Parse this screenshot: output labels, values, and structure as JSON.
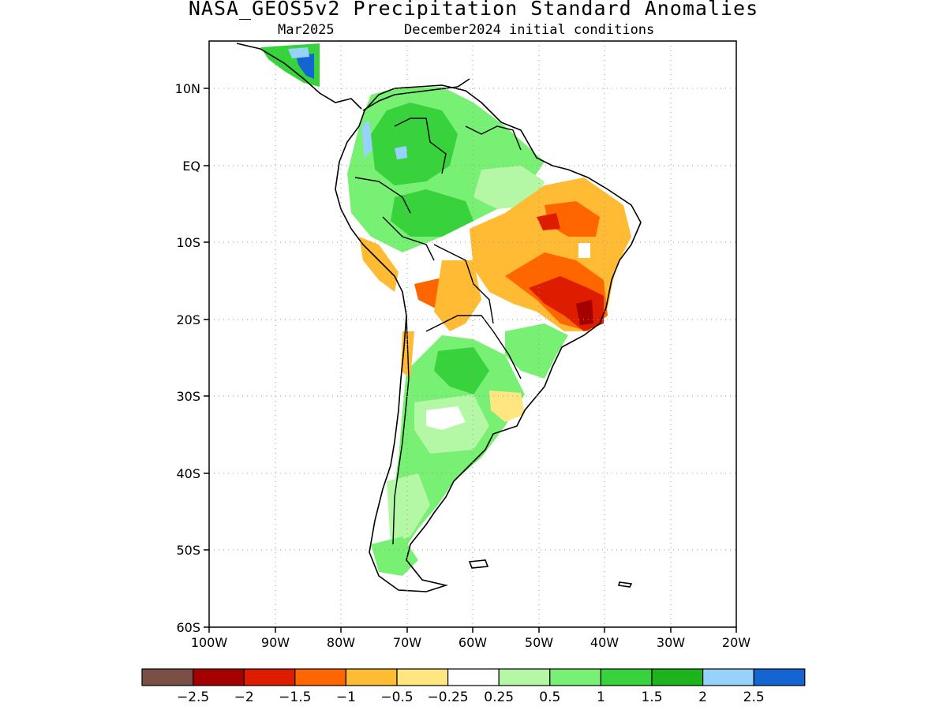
{
  "title": "NASA_GEOS5v2 Precipitation Standard Anomalies",
  "subtitle_left": "Mar2025",
  "subtitle_right": "December2024 initial conditions",
  "lat_labels": [
    "10N",
    "EQ",
    "10S",
    "20S",
    "30S",
    "40S",
    "50S",
    "60S"
  ],
  "lon_labels": [
    "100W",
    "90W",
    "80W",
    "70W",
    "60W",
    "50W",
    "40W",
    "30W",
    "20W"
  ],
  "colorbar": {
    "colors": [
      "#7a4f45",
      "#a50000",
      "#dd1c00",
      "#ff6600",
      "#ffbb33",
      "#ffe680",
      "#ffffff",
      "#b4f7a4",
      "#78f073",
      "#37d23c",
      "#1eb41e",
      "#96d2fa",
      "#1464d2"
    ],
    "labels": [
      "−2.5",
      "−2",
      "−1.5",
      "−1",
      "−0.5",
      "−0.25",
      "0.25",
      "0.5",
      "1",
      "1.5",
      "2",
      "2.5"
    ]
  }
}
